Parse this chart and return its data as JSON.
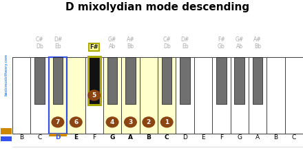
{
  "title": "D mixolydian mode descending",
  "white_notes": [
    "B",
    "C",
    "D",
    "E",
    "F",
    "G",
    "A",
    "B",
    "C",
    "D",
    "E",
    "F",
    "G",
    "A",
    "B",
    "C"
  ],
  "n_white": 16,
  "highlighted_white_indices": [
    2,
    3,
    5,
    6,
    7,
    8
  ],
  "blue_outline_indices": [
    2
  ],
  "orange_underline_indices": [
    2
  ],
  "black_keys": [
    {
      "x": 1.5,
      "label1": "C#",
      "label2": "Db",
      "active": false,
      "yellow": false
    },
    {
      "x": 2.5,
      "label1": "D#",
      "label2": "Eb",
      "active": false,
      "yellow": false
    },
    {
      "x": 4.5,
      "label1": "F#",
      "label2": "",
      "active": true,
      "yellow": true
    },
    {
      "x": 5.5,
      "label1": "G#",
      "label2": "Ab",
      "active": false,
      "yellow": false
    },
    {
      "x": 6.5,
      "label1": "A#",
      "label2": "Bb",
      "active": false,
      "yellow": false
    },
    {
      "x": 8.5,
      "label1": "C#",
      "label2": "Db",
      "active": false,
      "yellow": false
    },
    {
      "x": 9.5,
      "label1": "D#",
      "label2": "Eb",
      "active": false,
      "yellow": false
    },
    {
      "x": 11.5,
      "label1": "F#",
      "label2": "Gb",
      "active": false,
      "yellow": false
    },
    {
      "x": 12.5,
      "label1": "G#",
      "label2": "Ab",
      "active": false,
      "yellow": false
    },
    {
      "x": 13.5,
      "label1": "A#",
      "label2": "Bb",
      "active": false,
      "yellow": false
    }
  ],
  "white_circles": {
    "2": "7",
    "3": "6",
    "5": "4",
    "6": "3",
    "7": "2",
    "8": "1"
  },
  "black_circles": [
    {
      "x": 4.5,
      "num": "5"
    }
  ],
  "bg_color": "#ffffff",
  "white_key_color": "#ffffff",
  "black_key_color": "#707070",
  "active_black_color": "#111111",
  "highlight_fill": "#ffffcc",
  "circle_color": "#8B4513",
  "circle_text_color": "#ffffff",
  "blue_color": "#3355ee",
  "orange_color": "#cc8800",
  "yellow_fill": "#ffff99",
  "yellow_border": "#aaaa00",
  "gray_label_color": "#aaaaaa",
  "sidebar_bg": "#111122",
  "sidebar_text_color": "#4499ff",
  "key_border_color": "#333333",
  "piano_border_color": "#555555"
}
